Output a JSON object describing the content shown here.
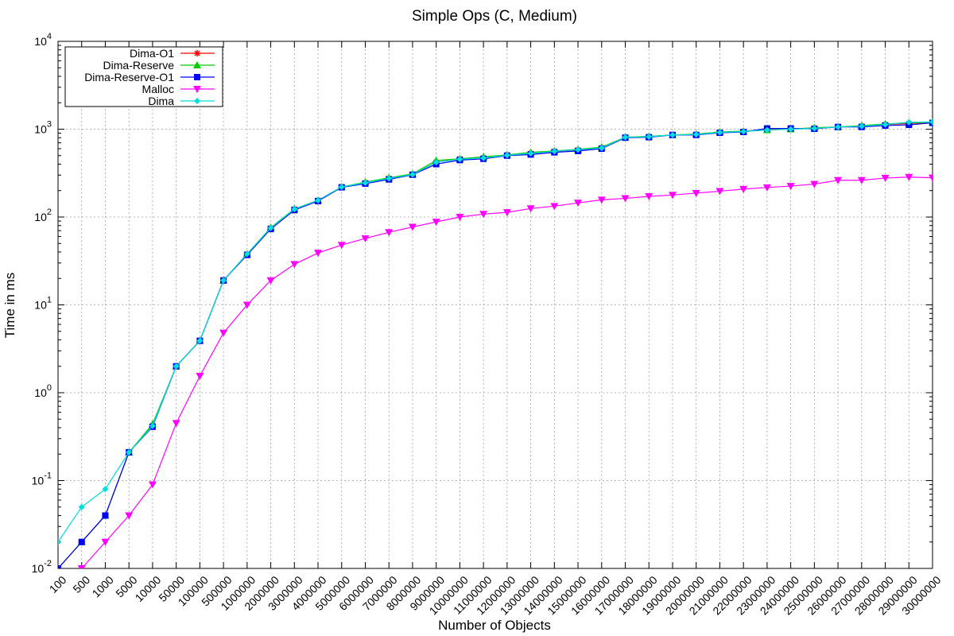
{
  "chart_data": {
    "type": "line",
    "title": "Simple Ops (C, Medium)",
    "xlabel": "Number of Objects",
    "ylabel": "Time in ms",
    "y_scale": "log",
    "ylim": [
      0.01,
      10000
    ],
    "y_ticks": [
      {
        "value": 0.01,
        "base": "10",
        "exp": "-2"
      },
      {
        "value": 0.1,
        "base": "10",
        "exp": "-1"
      },
      {
        "value": 1,
        "base": "10",
        "exp": "0"
      },
      {
        "value": 10,
        "base": "10",
        "exp": "1"
      },
      {
        "value": 100,
        "base": "10",
        "exp": "2"
      },
      {
        "value": 1000,
        "base": "10",
        "exp": "3"
      },
      {
        "value": 10000,
        "base": "10",
        "exp": "4"
      }
    ],
    "grid": true,
    "legend_position": "top-left",
    "categories": [
      "100",
      "500",
      "1000",
      "5000",
      "10000",
      "50000",
      "100000",
      "500000",
      "1000000",
      "2000000",
      "3000000",
      "4000000",
      "5000000",
      "6000000",
      "7000000",
      "8000000",
      "9000000",
      "10000000",
      "11000000",
      "12000000",
      "13000000",
      "14000000",
      "15000000",
      "16000000",
      "17000000",
      "18000000",
      "19000000",
      "20000000",
      "21000000",
      "22000000",
      "23000000",
      "24000000",
      "25000000",
      "26000000",
      "27000000",
      "28000000",
      "29000000",
      "30000000"
    ],
    "series": [
      {
        "name": "Dima-O1",
        "color": "#ff0000",
        "marker": "star",
        "values": [
          0.01,
          0.02,
          0.04,
          0.21,
          0.42,
          2,
          3.9,
          19,
          38,
          75,
          123,
          155,
          220,
          245,
          275,
          305,
          420,
          460,
          470,
          510,
          530,
          560,
          580,
          610,
          810,
          820,
          860,
          870,
          920,
          940,
          1000,
          1010,
          1030,
          1060,
          1080,
          1130,
          1160,
          1190
        ]
      },
      {
        "name": "Dima-Reserve",
        "color": "#00cc00",
        "marker": "triangle-up",
        "values": [
          0.01,
          0.02,
          0.04,
          0.21,
          0.44,
          2,
          3.9,
          19,
          38,
          76,
          124,
          155,
          220,
          250,
          280,
          310,
          440,
          460,
          485,
          510,
          545,
          565,
          590,
          625,
          810,
          830,
          860,
          880,
          930,
          950,
          980,
          1000,
          1040,
          1060,
          1100,
          1150,
          1180,
          1200
        ]
      },
      {
        "name": "Dima-Reserve-O1",
        "color": "#0000ff",
        "marker": "square",
        "values": [
          0.01,
          0.02,
          0.04,
          0.21,
          0.41,
          2,
          3.9,
          19,
          37,
          73,
          120,
          152,
          218,
          240,
          268,
          303,
          400,
          445,
          460,
          500,
          515,
          545,
          565,
          600,
          800,
          810,
          860,
          860,
          910,
          930,
          1020,
          1020,
          1010,
          1060,
          1060,
          1100,
          1120,
          1180
        ]
      },
      {
        "name": "Malloc",
        "color": "#ff00ff",
        "marker": "triangle-down",
        "values": [
          0.007,
          0.01,
          0.02,
          0.04,
          0.09,
          0.45,
          1.55,
          4.8,
          10,
          19,
          29,
          39,
          48,
          57,
          67,
          77,
          88,
          100,
          108,
          113,
          125,
          133,
          145,
          157,
          163,
          172,
          178,
          187,
          197,
          208,
          217,
          225,
          237,
          262,
          262,
          278,
          285,
          280
        ]
      },
      {
        "name": "Dima",
        "color": "#00dddd",
        "marker": "diamond",
        "values": [
          0.02,
          0.05,
          0.08,
          0.21,
          0.42,
          2,
          3.9,
          19,
          38,
          75,
          123,
          155,
          220,
          245,
          275,
          305,
          420,
          455,
          470,
          505,
          530,
          560,
          585,
          610,
          810,
          820,
          860,
          870,
          920,
          940,
          980,
          1000,
          1020,
          1060,
          1080,
          1130,
          1200,
          1210
        ]
      }
    ]
  }
}
